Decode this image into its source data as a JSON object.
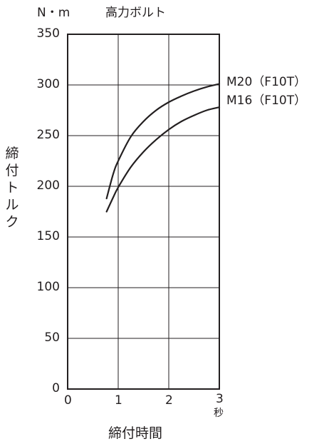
{
  "chart_data": {
    "type": "line",
    "title": "高力ボルト",
    "unit_label": "N・m",
    "xlabel": "締付時間",
    "x_unit": "秒",
    "ylabel": "締付トルク",
    "xlim": [
      0,
      3
    ],
    "ylim": [
      0,
      350
    ],
    "x_ticks": [
      "0",
      "1",
      "2",
      "3"
    ],
    "y_ticks": [
      "0",
      "50",
      "100",
      "150",
      "200",
      "250",
      "300",
      "350"
    ],
    "grid": true,
    "series": [
      {
        "name": "M20（F10T）",
        "x": [
          0.77,
          0.9,
          1.0,
          1.25,
          1.5,
          1.75,
          2.0,
          2.25,
          2.5,
          2.75,
          3.0
        ],
        "y": [
          188,
          212,
          225,
          249,
          264,
          275,
          283,
          289,
          294,
          298,
          301
        ]
      },
      {
        "name": "M16（F10T）",
        "x": [
          0.77,
          0.9,
          1.0,
          1.25,
          1.5,
          1.75,
          2.0,
          2.25,
          2.5,
          2.75,
          3.0
        ],
        "y": [
          175,
          189,
          199,
          219,
          234,
          246,
          256,
          264,
          270,
          275,
          278
        ]
      }
    ]
  }
}
